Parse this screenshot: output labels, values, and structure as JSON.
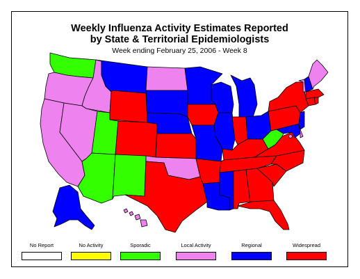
{
  "title_line1": "Weekly Influenza Activity Estimates Reported",
  "title_line2": "by State & Territorial Epidemiologists",
  "subtitle": "Week ending February 25, 2006 - Week 8",
  "legend": [
    {
      "label": "No Report",
      "color": "#ffffff"
    },
    {
      "label": "No Activity",
      "color": "#ffff00"
    },
    {
      "label": "Sporadic",
      "color": "#33ff00"
    },
    {
      "label": "Local Activity",
      "color": "#ee82ee"
    },
    {
      "label": "Regional",
      "color": "#0000ff"
    },
    {
      "label": "Widespread",
      "color": "#ff0000"
    }
  ],
  "states": {
    "WA": "Sporadic",
    "OR": "Local Activity",
    "CA": "Local Activity",
    "ID": "Local Activity",
    "NV": "Local Activity",
    "MT": "Regional",
    "WY": "Widespread",
    "UT": "Sporadic",
    "AZ": "Sporadic",
    "CO": "Widespread",
    "NM": "Sporadic",
    "ND": "Local Activity",
    "SD": "Regional",
    "NE": "Regional",
    "KS": "Widespread",
    "OK": "Local Activity",
    "TX": "Widespread",
    "MN": "Regional",
    "IA": "Widespread",
    "MO": "Regional",
    "AR": "Widespread",
    "LA": "Regional",
    "WI": "Regional",
    "IL": "Regional",
    "MI": "Regional",
    "IN": "Widespread",
    "OH": "Regional",
    "KY": "Widespread",
    "TN": "Widespread",
    "MS": "Regional",
    "AL": "Widespread",
    "GA": "Widespread",
    "FL": "Widespread",
    "SC": "Widespread",
    "NC": "Widespread",
    "VA": "Widespread",
    "WV": "Sporadic",
    "PA": "Widespread",
    "NY": "Widespread",
    "NJ": "Regional",
    "DE": "Local Activity",
    "MD": "Regional",
    "DC": "Local Activity",
    "CT": "Widespread",
    "RI": "Widespread",
    "MA": "Widespread",
    "VT": "Local Activity",
    "NH": "Regional",
    "ME": "Local Activity",
    "AK": "Regional",
    "HI": "Local Activity"
  }
}
